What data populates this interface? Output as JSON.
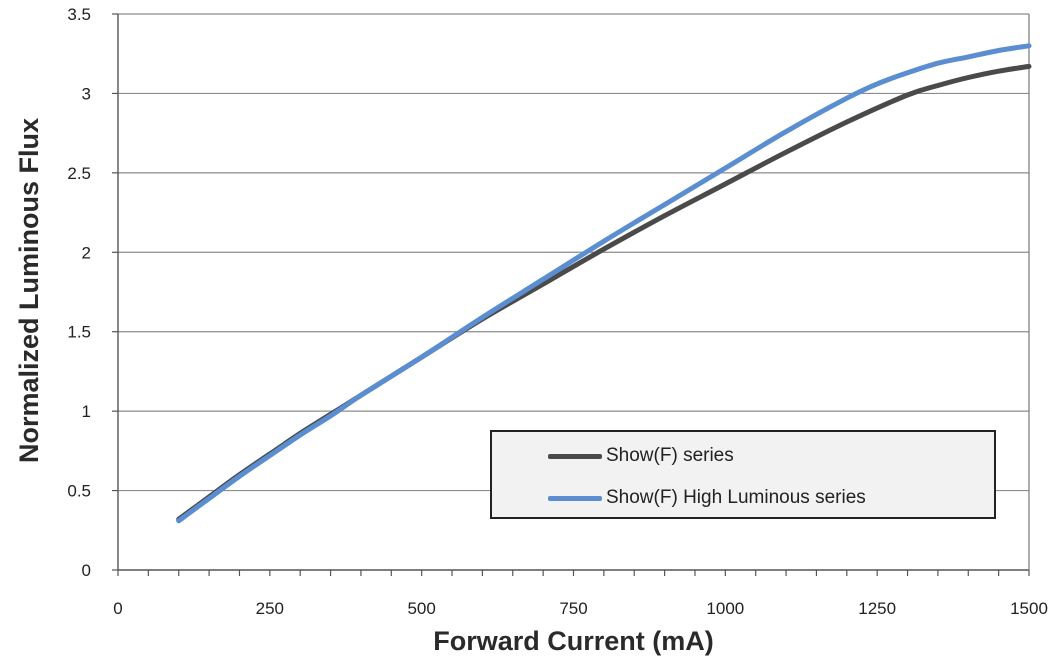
{
  "chart_data": {
    "type": "line",
    "xlabel": "Forward Current (mA)",
    "ylabel": "Normalized Luminous Flux",
    "xlim": [
      0,
      1500
    ],
    "ylim": [
      0,
      3.5
    ],
    "xticks": [
      "0",
      "250",
      "500",
      "750",
      "1000",
      "1250",
      "1500"
    ],
    "yticks": [
      "0",
      "0.5",
      "1",
      "1.5",
      "2",
      "2.5",
      "3",
      "3.5"
    ],
    "grid": "horizontal",
    "legend_position": "lower-right",
    "series": [
      {
        "name": "Show(F) series",
        "color": "#4a4a4a",
        "x": [
          100,
          150,
          200,
          250,
          300,
          350,
          400,
          500,
          600,
          700,
          800,
          900,
          1000,
          1100,
          1200,
          1300,
          1350,
          1400,
          1450,
          1500
        ],
        "y": [
          0.32,
          0.46,
          0.6,
          0.73,
          0.86,
          0.98,
          1.1,
          1.34,
          1.58,
          1.8,
          2.02,
          2.23,
          2.43,
          2.63,
          2.82,
          2.99,
          3.05,
          3.1,
          3.14,
          3.17
        ]
      },
      {
        "name": "Show(F) High Luminous series",
        "color": "#5b8ed1",
        "x": [
          100,
          150,
          200,
          250,
          300,
          350,
          400,
          500,
          600,
          700,
          800,
          900,
          1000,
          1100,
          1200,
          1250,
          1300,
          1350,
          1400,
          1450,
          1500
        ],
        "y": [
          0.31,
          0.45,
          0.59,
          0.72,
          0.85,
          0.97,
          1.1,
          1.34,
          1.59,
          1.83,
          2.07,
          2.3,
          2.53,
          2.76,
          2.97,
          3.06,
          3.13,
          3.19,
          3.23,
          3.27,
          3.3
        ]
      }
    ]
  }
}
